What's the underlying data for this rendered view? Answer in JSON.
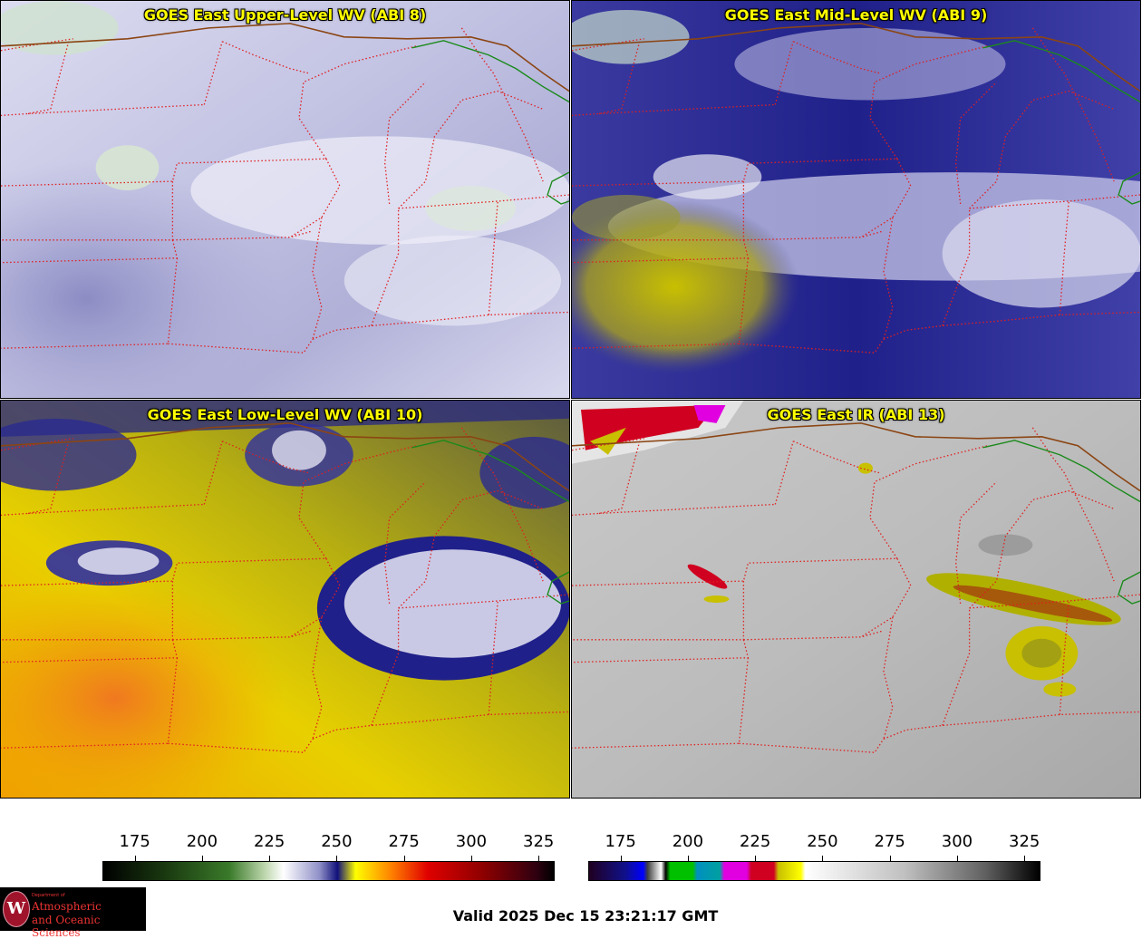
{
  "panels": {
    "upper_wv": {
      "title": "GOES East Upper-Level WV (ABI 8)"
    },
    "mid_wv": {
      "title": "GOES East Mid-Level WV (ABI 9)"
    },
    "low_wv": {
      "title": "GOES East Low-Level WV (ABI 10)"
    },
    "ir": {
      "title": "GOES East IR (ABI 13)"
    }
  },
  "colorbars": {
    "wv": {
      "ticks": [
        "175",
        "200",
        "225",
        "250",
        "275",
        "300",
        "325"
      ]
    },
    "ir": {
      "ticks": [
        "175",
        "200",
        "225",
        "250",
        "275",
        "300",
        "325"
      ]
    }
  },
  "colors": {
    "title": "#ffff00",
    "state_borders": "#e02020",
    "intl_border": "#8b4513",
    "coast": "#1a8a1a"
  },
  "footer": {
    "valid": "Valid 2025 Dec 15 23:21:17 GMT"
  },
  "logo": {
    "line1": "Department of",
    "line2": "Atmospheric",
    "line3": "and Oceanic Sciences",
    "seal": "W"
  }
}
